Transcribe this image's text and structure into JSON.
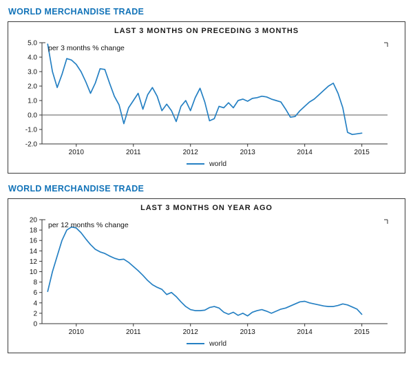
{
  "sections": [
    {
      "heading": "WORLD MERCHANDISE TRADE"
    },
    {
      "heading": "WORLD MERCHANDISE TRADE"
    }
  ],
  "chart_data": [
    {
      "type": "line",
      "title": "LAST 3 MONTHS ON PRECEDING 3 MONTHS",
      "annotation": "per 3 months % change",
      "legend_label": "world",
      "line_color": "#2580c3",
      "axis_color": "#333333",
      "zero_line": true,
      "xlim": [
        2009.4,
        2015.45
      ],
      "ylim": [
        -2,
        5
      ],
      "yticks": [
        5,
        4,
        3,
        2,
        1,
        0,
        -1,
        -2
      ],
      "ytick_labels": [
        "5.0",
        "4.0",
        "3.0",
        "2.0",
        "1.0",
        "0.0",
        "-1.0",
        "-2.0"
      ],
      "xticks": [
        2010,
        2011,
        2012,
        2013,
        2014,
        2015
      ],
      "xtick_labels": [
        "2010",
        "2011",
        "2012",
        "2013",
        "2014",
        "2015"
      ],
      "x_start": 2009.5,
      "x_step_years": 0.08333,
      "values": [
        4.9,
        3.0,
        1.9,
        2.8,
        3.9,
        3.8,
        3.5,
        3.0,
        2.3,
        1.5,
        2.2,
        3.2,
        3.15,
        2.2,
        1.3,
        0.7,
        -0.6,
        0.5,
        1.0,
        1.5,
        0.4,
        1.4,
        1.9,
        1.3,
        0.3,
        0.75,
        0.3,
        -0.45,
        0.6,
        1.0,
        0.3,
        1.2,
        1.85,
        0.9,
        -0.4,
        -0.25,
        0.6,
        0.5,
        0.85,
        0.5,
        1.0,
        1.1,
        0.95,
        1.15,
        1.2,
        1.3,
        1.25,
        1.1,
        1.0,
        0.9,
        0.4,
        -0.15,
        -0.1,
        0.3,
        0.6,
        0.9,
        1.1,
        1.4,
        1.7,
        2.0,
        2.2,
        1.5,
        0.5,
        -1.2,
        -1.35,
        -1.3,
        -1.25
      ]
    },
    {
      "type": "line",
      "title": "LAST 3 MONTHS ON YEAR AGO",
      "annotation": "per 12 months % change",
      "legend_label": "world",
      "line_color": "#2580c3",
      "axis_color": "#333333",
      "zero_line": false,
      "xlim": [
        2009.4,
        2015.45
      ],
      "ylim": [
        0,
        20
      ],
      "yticks": [
        20,
        18,
        16,
        14,
        12,
        10,
        8,
        6,
        4,
        2,
        0
      ],
      "ytick_labels": [
        "20",
        "18",
        "16",
        "14",
        "12",
        "10",
        "8",
        "6",
        "4",
        "2",
        "0"
      ],
      "xticks": [
        2010,
        2011,
        2012,
        2013,
        2014,
        2015
      ],
      "xtick_labels": [
        "2010",
        "2011",
        "2012",
        "2013",
        "2014",
        "2015"
      ],
      "x_start": 2009.5,
      "x_step_years": 0.08333,
      "values": [
        6.2,
        10.0,
        13.0,
        16.0,
        18.0,
        18.6,
        18.4,
        17.5,
        16.3,
        15.2,
        14.3,
        13.8,
        13.5,
        13.0,
        12.6,
        12.3,
        12.4,
        11.8,
        11.0,
        10.2,
        9.3,
        8.3,
        7.5,
        7.0,
        6.6,
        5.6,
        6.0,
        5.2,
        4.2,
        3.3,
        2.7,
        2.5,
        2.5,
        2.6,
        3.1,
        3.3,
        3.0,
        2.2,
        1.8,
        2.2,
        1.6,
        2.0,
        1.5,
        2.2,
        2.5,
        2.7,
        2.4,
        2.0,
        2.4,
        2.8,
        3.0,
        3.4,
        3.8,
        4.2,
        4.3,
        4.0,
        3.8,
        3.6,
        3.4,
        3.3,
        3.3,
        3.5,
        3.8,
        3.6,
        3.2,
        2.8,
        1.8
      ]
    }
  ]
}
